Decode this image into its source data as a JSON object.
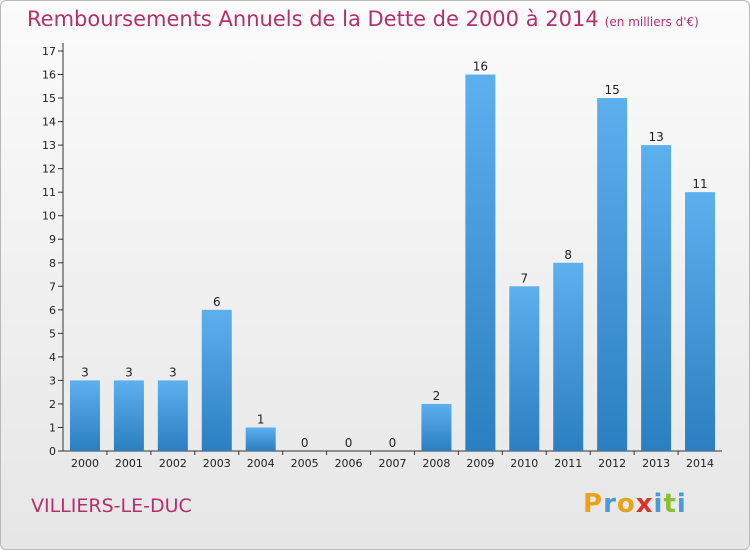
{
  "header": {
    "title": "Remboursements Annuels de la Dette de 2000 à 2014",
    "unit": "(en milliers d'€)"
  },
  "footer": {
    "commune": "VILLIERS-LE-DUC",
    "logo_letters": [
      "P",
      "r",
      "o",
      "x",
      "i",
      "t",
      "i"
    ],
    "logo_colors": [
      "#e8a21c",
      "#4a9ad6",
      "#e8a21c",
      "#d8352a",
      "#4a9ad6",
      "#8bbf2f",
      "#4a9ad6"
    ]
  },
  "colors": {
    "title": "#b52f6c",
    "bar_light": "#5db0ee",
    "bar_dark": "#2a7fc2"
  },
  "chart_data": {
    "type": "bar",
    "title": "Remboursements Annuels de la Dette de 2000 à 2014",
    "xlabel": "",
    "ylabel": "",
    "categories": [
      "2000",
      "2001",
      "2002",
      "2003",
      "2004",
      "2005",
      "2006",
      "2007",
      "2008",
      "2009",
      "2010",
      "2011",
      "2012",
      "2013",
      "2014"
    ],
    "values": [
      3,
      3,
      3,
      6,
      1,
      0,
      0,
      0,
      2,
      16,
      7,
      8,
      15,
      13,
      11
    ],
    "ylim": [
      0,
      17
    ],
    "yticks": [
      0,
      1,
      2,
      3,
      4,
      5,
      6,
      7,
      8,
      9,
      10,
      11,
      12,
      13,
      14,
      15,
      16,
      17
    ],
    "grid": false,
    "legend": "none"
  }
}
